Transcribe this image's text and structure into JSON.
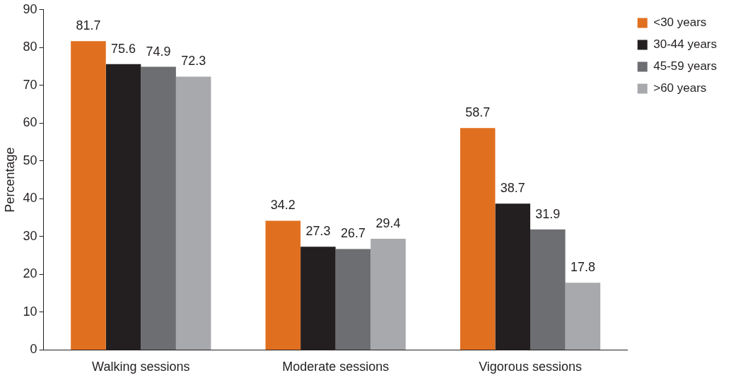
{
  "chart_data": {
    "type": "bar",
    "ylabel": "Percentage",
    "categories": [
      "Walking sessions",
      "Moderate sessions",
      "Vigorous sessions"
    ],
    "series": [
      {
        "name": "<30 years",
        "color": "#e07020",
        "values": [
          81.7,
          34.2,
          58.7
        ]
      },
      {
        "name": "30-44 years",
        "color": "#231f20",
        "values": [
          75.6,
          27.3,
          38.7
        ]
      },
      {
        "name": "45-59 years",
        "color": "#6d6e71",
        "values": [
          74.9,
          26.7,
          31.9
        ]
      },
      {
        "name": ">60 years",
        "color": "#a7a9ac",
        "values": [
          72.3,
          29.4,
          17.8
        ]
      }
    ],
    "ylim": [
      0,
      90
    ],
    "yticks": [
      0,
      10,
      20,
      30,
      40,
      50,
      60,
      70,
      80,
      90
    ],
    "grid": false,
    "legend": "top right",
    "data_labels": true
  }
}
